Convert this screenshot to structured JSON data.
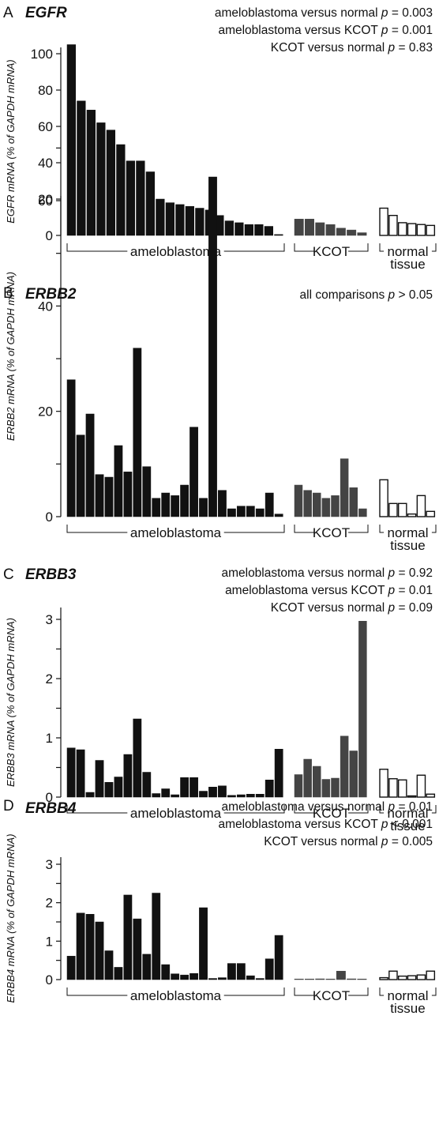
{
  "chart_data": [
    {
      "type": "bar",
      "panel": "A",
      "title": "EGFR",
      "ylabel": "EGFR mRNA (% of GAPDH mRNA)",
      "ylim": [
        0,
        110
      ],
      "yticks": [
        0,
        20,
        40,
        60,
        80,
        100
      ],
      "minor_ticks": [],
      "stats": [
        {
          "text": "ameloblastoma versus normal ",
          "p": "p",
          "rel": " = 0.003"
        },
        {
          "text": "ameloblastoma versus KCOT ",
          "p": "p",
          "rel": " = 0.001"
        },
        {
          "text": "KCOT versus normal ",
          "p": "p",
          "rel": " = 0.83"
        }
      ],
      "groups": [
        {
          "name": "ameloblastoma",
          "label_lines": [
            "ameloblastoma"
          ],
          "color": "#111111",
          "values": [
            105,
            74,
            69,
            62,
            58,
            50,
            41,
            41,
            35,
            20,
            18,
            17,
            16,
            15,
            14,
            11,
            8,
            7,
            6,
            6,
            5,
            0.5
          ]
        },
        {
          "name": "KCOT",
          "label_lines": [
            "KCOT"
          ],
          "color": "#444444",
          "values": [
            9,
            9,
            7,
            6,
            4,
            3,
            1.5
          ]
        },
        {
          "name": "normal tissue",
          "label_lines": [
            "normal",
            "tissue"
          ],
          "color": "#ffffff",
          "values": [
            15,
            11,
            7,
            6.5,
            6,
            5.5
          ]
        }
      ]
    },
    {
      "type": "bar",
      "panel": "B",
      "title": "ERBB2",
      "ylabel": "ERBB2 mRNA (% of GAPDH mRNA)",
      "ylim": [
        0,
        70
      ],
      "yticks": [
        0,
        20,
        40,
        60
      ],
      "minor_ticks": [
        10,
        30,
        50,
        70
      ],
      "stats": [
        {
          "text": "all comparisons ",
          "p": "p",
          "rel": " > 0.05"
        }
      ],
      "groups": [
        {
          "name": "ameloblastoma",
          "label_lines": [
            "ameloblastoma"
          ],
          "color": "#111111",
          "values": [
            26,
            15.5,
            19.5,
            8,
            7.5,
            13.5,
            8.5,
            32,
            9.5,
            3.5,
            4.5,
            4,
            6,
            17,
            3.5,
            64.5,
            5,
            1.5,
            2,
            2,
            1.5,
            4.5,
            0.5
          ]
        },
        {
          "name": "KCOT",
          "label_lines": [
            "KCOT"
          ],
          "color": "#444444",
          "values": [
            6,
            5,
            4.5,
            3.5,
            4,
            11,
            5.5,
            1.5
          ]
        },
        {
          "name": "normal tissue",
          "label_lines": [
            "normal",
            "tissue"
          ],
          "color": "#ffffff",
          "values": [
            7,
            2.5,
            2.5,
            0.5,
            4,
            1
          ]
        }
      ]
    },
    {
      "type": "bar",
      "panel": "C",
      "title": "ERBB3",
      "ylabel": "ERBB3 mRNA (% of GAPDH mRNA)",
      "ylim": [
        0,
        3
      ],
      "yticks": [
        0,
        1,
        2,
        3
      ],
      "minor_ticks": [
        0.5,
        1.5,
        2.5
      ],
      "stats": [
        {
          "text": "ameloblastoma versus normal ",
          "p": "p",
          "rel": " = 0.92"
        },
        {
          "text": "ameloblastoma versus KCOT ",
          "p": "p",
          "rel": " = 0.01"
        },
        {
          "text": "KCOT versus normal ",
          "p": "p",
          "rel": " = 0.09"
        }
      ],
      "groups": [
        {
          "name": "ameloblastoma",
          "label_lines": [
            "ameloblastoma"
          ],
          "color": "#111111",
          "values": [
            0.83,
            0.8,
            0.08,
            0.62,
            0.25,
            0.34,
            0.72,
            1.32,
            0.42,
            0.06,
            0.14,
            0.04,
            0.33,
            0.33,
            0.1,
            0.17,
            0.19,
            0.03,
            0.04,
            0.05,
            0.05,
            0.29,
            0.81
          ]
        },
        {
          "name": "KCOT",
          "label_lines": [
            "KCOT"
          ],
          "color": "#444444",
          "values": [
            0.38,
            0.64,
            0.52,
            0.3,
            0.32,
            1.03,
            0.78,
            2.97
          ]
        },
        {
          "name": "normal tissue",
          "label_lines": [
            "normal",
            "tissue"
          ],
          "color": "#ffffff",
          "values": [
            0.47,
            0.31,
            0.29,
            0.02,
            0.37,
            0.05
          ]
        }
      ]
    },
    {
      "type": "bar",
      "panel": "D",
      "title": "ERBB4",
      "ylabel": "ERBB4 mRNA (% of GAPDH mRNA)",
      "ylim": [
        0,
        3
      ],
      "yticks": [
        0,
        1,
        2,
        3
      ],
      "minor_ticks": [
        0.5,
        1.5,
        2.5
      ],
      "stats": [
        {
          "text": "ameloblastoma versus normal ",
          "p": "p",
          "rel": " = 0.01"
        },
        {
          "text": "ameloblastoma versus KCOT ",
          "p": "p",
          "rel": " < 0.001"
        },
        {
          "text": "KCOT versus normal ",
          "p": "p",
          "rel": " = 0.005"
        }
      ],
      "groups": [
        {
          "name": "ameloblastoma",
          "label_lines": [
            "ameloblastoma"
          ],
          "color": "#111111",
          "values": [
            0.61,
            1.73,
            1.7,
            1.5,
            0.75,
            0.32,
            2.2,
            1.58,
            0.66,
            2.25,
            0.39,
            0.15,
            0.12,
            0.16,
            1.87,
            0.03,
            0.05,
            0.42,
            0.42,
            0.1,
            0.03,
            0.54,
            1.15
          ]
        },
        {
          "name": "KCOT",
          "label_lines": [
            "KCOT"
          ],
          "color": "#444444",
          "values": [
            0.01,
            0.01,
            0.02,
            0.01,
            0.22,
            0.02,
            0.01
          ]
        },
        {
          "name": "normal tissue",
          "label_lines": [
            "normal",
            "tissue"
          ],
          "color": "#ffffff",
          "values": [
            0.05,
            0.22,
            0.09,
            0.1,
            0.12,
            0.22
          ]
        }
      ]
    }
  ]
}
